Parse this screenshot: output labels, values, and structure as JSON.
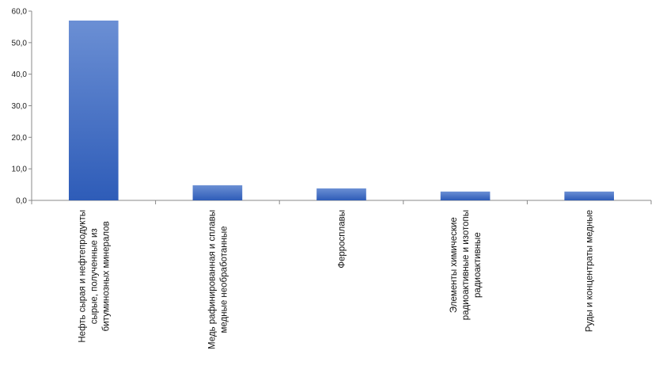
{
  "chart_data": {
    "type": "bar",
    "title": "",
    "xlabel": "",
    "ylabel": "",
    "ylim": [
      0,
      60
    ],
    "yticks": [
      0,
      10,
      20,
      30,
      40,
      50,
      60
    ],
    "ytick_labels": [
      "0,0",
      "10,0",
      "20,0",
      "30,0",
      "40,0",
      "50,0",
      "60,0"
    ],
    "grid": false,
    "legend": "none",
    "categories": [
      [
        "Нефть сырая и нефтепродукты",
        "сырые, полученные из",
        "битуминозных минералов"
      ],
      [
        "Медь рафинированная и сплавы",
        "медные необработанные"
      ],
      [
        "Ферросплавы"
      ],
      [
        "Элементы химические",
        "радиоактивные и изотопы",
        "радиоактивные"
      ],
      [
        "Руды и концентраты медные"
      ]
    ],
    "values": [
      57.0,
      4.8,
      3.8,
      2.8,
      2.8
    ],
    "colors": {
      "bar_top": "#6b8fd4",
      "bar_bottom": "#2e5cb8",
      "axis": "#888888"
    }
  }
}
